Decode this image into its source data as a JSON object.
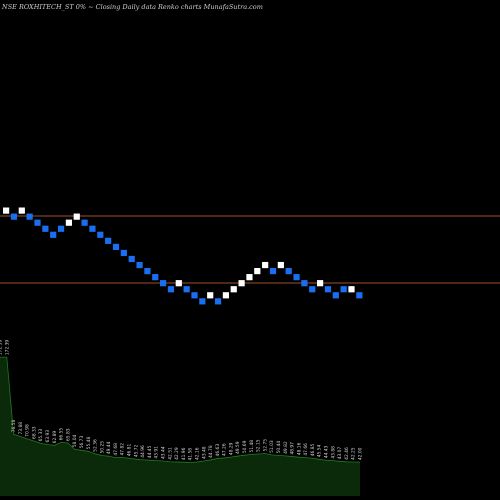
{
  "title": "NSE ROXHITECH_ST 0% ~   Closing Daily data  Renko  charts MunafaSutra.com",
  "colors": {
    "background": "#000000",
    "up_brick": "#ffffff",
    "down_brick": "#1a6ef0",
    "reference_line": "#a0522d",
    "volume_fill": "#0a2a0a",
    "volume_stroke": "#1f7a1f"
  },
  "chart_data": {
    "type": "renko",
    "reference_lines": [
      "upper",
      "lower"
    ],
    "bricks": [
      {
        "dir": "up",
        "level": 0
      },
      {
        "dir": "down",
        "level": -1
      },
      {
        "dir": "up",
        "level": 0
      },
      {
        "dir": "down",
        "level": -1
      },
      {
        "dir": "down",
        "level": -2
      },
      {
        "dir": "down",
        "level": -3
      },
      {
        "dir": "down",
        "level": -4
      },
      {
        "dir": "down",
        "level": -3
      },
      {
        "dir": "up",
        "level": -2
      },
      {
        "dir": "up",
        "level": -1
      },
      {
        "dir": "down",
        "level": -2
      },
      {
        "dir": "down",
        "level": -3
      },
      {
        "dir": "down",
        "level": -4
      },
      {
        "dir": "down",
        "level": -5
      },
      {
        "dir": "down",
        "level": -6
      },
      {
        "dir": "down",
        "level": -7
      },
      {
        "dir": "down",
        "level": -8
      },
      {
        "dir": "down",
        "level": -9
      },
      {
        "dir": "down",
        "level": -10
      },
      {
        "dir": "down",
        "level": -11
      },
      {
        "dir": "down",
        "level": -12
      },
      {
        "dir": "down",
        "level": -13
      },
      {
        "dir": "up",
        "level": -12
      },
      {
        "dir": "down",
        "level": -13
      },
      {
        "dir": "down",
        "level": -14
      },
      {
        "dir": "down",
        "level": -15
      },
      {
        "dir": "up",
        "level": -14
      },
      {
        "dir": "down",
        "level": -15
      },
      {
        "dir": "up",
        "level": -14
      },
      {
        "dir": "up",
        "level": -13
      },
      {
        "dir": "up",
        "level": -12
      },
      {
        "dir": "up",
        "level": -11
      },
      {
        "dir": "up",
        "level": -10
      },
      {
        "dir": "up",
        "level": -9
      },
      {
        "dir": "down",
        "level": -10
      },
      {
        "dir": "up",
        "level": -9
      },
      {
        "dir": "down",
        "level": -10
      },
      {
        "dir": "down",
        "level": -11
      },
      {
        "dir": "down",
        "level": -12
      },
      {
        "dir": "down",
        "level": -13
      },
      {
        "dir": "up",
        "level": -12
      },
      {
        "dir": "down",
        "level": -13
      },
      {
        "dir": "down",
        "level": -14
      },
      {
        "dir": "down",
        "level": -13
      },
      {
        "dir": "up",
        "level": -13
      },
      {
        "dir": "down",
        "level": -14
      }
    ],
    "volume": [
      172.39,
      172.39,
      76.58,
      73.88,
      70.98,
      68.33,
      65.33,
      63.93,
      62.89,
      66.55,
      65.83,
      58.04,
      56.73,
      55.48,
      52.36,
      50.25,
      49.44,
      47.68,
      47.82,
      46.81,
      45.72,
      44.96,
      44.45,
      43.91,
      43.44,
      42.51,
      42.29,
      41.96,
      41.58,
      42.16,
      43.48,
      44.78,
      46.63,
      47.26,
      48.29,
      49.59,
      50.69,
      51.48,
      52.15,
      52.75,
      51.03,
      50.44,
      49.82,
      48.97,
      48.16,
      47.66,
      46.85,
      45.54,
      44.43,
      43.88,
      43.07,
      42.46,
      42.25,
      42.0
    ]
  }
}
